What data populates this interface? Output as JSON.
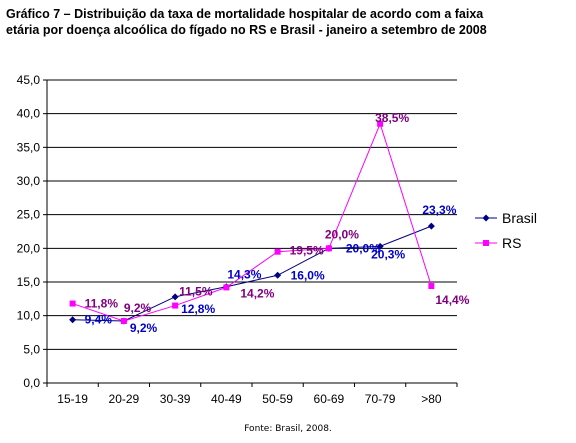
{
  "chart_data": {
    "type": "line",
    "title_lines": [
      "Gráfico 7 – Distribuição da taxa de mortalidade hospitalar de acordo com a faixa",
      "etária por doença alcoólica do fígado no RS e Brasil - janeiro a setembro de 2008"
    ],
    "categories": [
      "15-19",
      "20-29",
      "30-39",
      "40-49",
      "50-59",
      "60-69",
      "70-79",
      ">80"
    ],
    "ylim": [
      0,
      45
    ],
    "yticks": [
      "0,0",
      "5,0",
      "10,0",
      "15,0",
      "20,0",
      "25,0",
      "30,0",
      "35,0",
      "40,0",
      "45,0"
    ],
    "ytick_values": [
      0,
      5,
      10,
      15,
      20,
      25,
      30,
      35,
      40,
      45
    ],
    "grid": true,
    "legend_position": "right",
    "series": [
      {
        "name": "Brasil",
        "color": "#000080",
        "label_color": "#0000cc",
        "marker": "diamond",
        "values": [
          9.4,
          9.2,
          12.8,
          14.3,
          16.0,
          20.0,
          20.3,
          23.3
        ],
        "labels": [
          "9,4%",
          "9,2%",
          "12,8%",
          "14,3%",
          "16,0%",
          "20,0%",
          "20,3%",
          "23,3%"
        ]
      },
      {
        "name": "RS",
        "color": "#ff00ff",
        "label_color": "#800080",
        "marker": "square",
        "values": [
          11.8,
          9.2,
          11.5,
          14.2,
          19.5,
          20.0,
          38.5,
          14.4
        ],
        "labels": [
          "11,8%",
          "9,2%",
          "11,5%",
          "14,2%",
          "19,5%",
          "20,0%",
          "38,5%",
          "14,4%"
        ]
      }
    ],
    "source": "Fonte: Brasil, 2008."
  }
}
